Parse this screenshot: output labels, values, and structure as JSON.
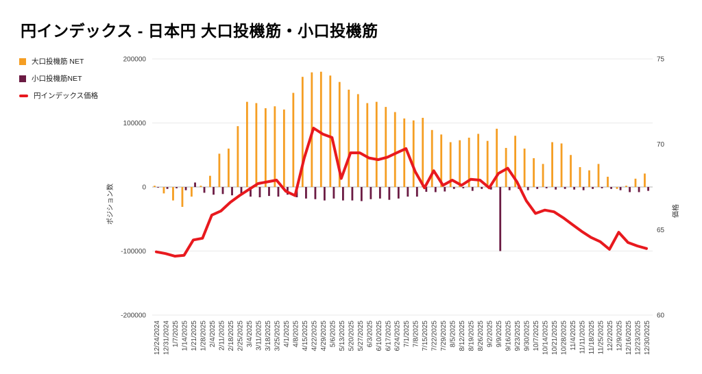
{
  "title": "円インデックス - 日本円 大口投機筋・小口投機筋",
  "legend": {
    "items": [
      {
        "label": "大口投機筋 NET",
        "color": "#F59E23",
        "type": "bar"
      },
      {
        "label": "小口投機筋NET",
        "color": "#6B1B43",
        "type": "bar"
      },
      {
        "label": "円インデックス価格",
        "color": "#E8191E",
        "type": "line"
      }
    ]
  },
  "chart_data": {
    "type": "bar+line",
    "title": "円インデックス - 日本円 大口投機筋・小口投機筋",
    "grid": "horizontal-only",
    "legend_position": "top-left",
    "categories": [
      "12/24/2024",
      "12/31/2024",
      "1/7/2025",
      "1/14/2025",
      "1/21/2025",
      "1/28/2025",
      "2/4/2025",
      "2/11/2025",
      "2/18/2025",
      "2/25/2025",
      "3/4/2025",
      "3/11/2025",
      "3/18/2025",
      "3/25/2025",
      "4/1/2025",
      "4/8/2025",
      "4/15/2025",
      "4/22/2025",
      "4/29/2025",
      "5/6/2025",
      "5/13/2025",
      "5/20/2025",
      "5/27/2025",
      "6/3/2025",
      "6/10/2025",
      "6/17/2025",
      "6/24/2025",
      "7/1/2025",
      "7/8/2025",
      "7/15/2025",
      "7/22/2025",
      "7/29/2025",
      "8/5/2025",
      "8/12/2025",
      "8/19/2025",
      "8/26/2025",
      "9/2/2025",
      "9/9/2025",
      "9/16/2025",
      "9/23/2025",
      "9/30/2025",
      "10/7/2025",
      "10/14/2025",
      "10/21/2025",
      "10/28/2025",
      "11/4/2025",
      "11/11/2025",
      "11/18/2025",
      "11/25/2025",
      "12/2/2025",
      "12/9/2025",
      "12/16/2025",
      "12/23/2025",
      "12/30/2025"
    ],
    "series": [
      {
        "name": "大口投機筋 NET",
        "type": "bar",
        "axis": "left",
        "color": "#F59E23",
        "values": [
          2000,
          -10000,
          -21000,
          -31000,
          -15000,
          2000,
          17500,
          52000,
          60000,
          95000,
          133000,
          131000,
          123000,
          126000,
          121000,
          147000,
          172000,
          179000,
          180000,
          174000,
          164000,
          152000,
          145000,
          131000,
          133000,
          125000,
          117000,
          107000,
          104000,
          108000,
          89000,
          82000,
          70000,
          73000,
          77000,
          83000,
          72000,
          91000,
          61000,
          80000,
          60000,
          45000,
          36000,
          70000,
          68000,
          50000,
          31000,
          26000,
          36000,
          16000,
          -3000,
          2000,
          13000,
          21000
        ]
      },
      {
        "name": "小口投機筋NET",
        "type": "bar",
        "axis": "left",
        "color": "#6B1B43",
        "values": [
          -1000,
          -3000,
          -2000,
          -5000,
          7000,
          -9000,
          -12000,
          -11000,
          -13000,
          -11000,
          -15000,
          -16000,
          -14000,
          -15000,
          -12000,
          -16000,
          -18000,
          -19000,
          -21000,
          -18000,
          -21000,
          -21000,
          -22000,
          -19000,
          -18000,
          -20000,
          -18000,
          -15000,
          -15000,
          -7500,
          -8000,
          -7000,
          -3000,
          -2000,
          -6000,
          -3000,
          -4000,
          -100000,
          -5000,
          -3000,
          -5000,
          -3000,
          -2000,
          -4000,
          -3000,
          -4000,
          -5000,
          -3000,
          -2000,
          -3000,
          -5000,
          -8000,
          -8000,
          -6000
        ]
      },
      {
        "name": "円インデックス価格",
        "type": "line",
        "axis": "right",
        "color": "#E8191E",
        "values": [
          63.7,
          63.6,
          63.45,
          63.5,
          64.4,
          64.5,
          65.85,
          66.1,
          66.6,
          67.0,
          67.35,
          67.7,
          67.8,
          67.9,
          67.25,
          67.0,
          69.2,
          70.95,
          70.6,
          70.4,
          68.0,
          69.5,
          69.5,
          69.2,
          69.1,
          69.25,
          69.5,
          69.75,
          68.4,
          67.45,
          68.45,
          67.6,
          67.9,
          67.6,
          67.95,
          67.9,
          67.45,
          68.3,
          68.6,
          67.8,
          66.7,
          65.95,
          66.15,
          66.05,
          65.7,
          65.3,
          64.9,
          64.55,
          64.3,
          63.85,
          64.85,
          64.25,
          64.05,
          63.9
        ]
      }
    ],
    "axes": {
      "left": {
        "title": "ポジション数",
        "min": -200000,
        "max": 200000,
        "ticks": [
          {
            "value": 200000,
            "label": "200000"
          },
          {
            "value": 100000,
            "label": "100000"
          },
          {
            "value": 0,
            "label": "0"
          },
          {
            "value": -100000,
            "label": "-100000"
          },
          {
            "value": -200000,
            "label": "-200000"
          }
        ]
      },
      "right": {
        "title": "価格",
        "min": 60,
        "max": 75,
        "ticks": [
          {
            "value": 75,
            "label": "75"
          },
          {
            "value": 70,
            "label": "70"
          },
          {
            "value": 65,
            "label": "65"
          },
          {
            "value": 60,
            "label": "60"
          }
        ]
      }
    },
    "colors": {
      "zero_line": "#b3b3b3",
      "gridline": "#e9e9e9",
      "tick_text": "#404040",
      "background": "#ffffff"
    }
  }
}
